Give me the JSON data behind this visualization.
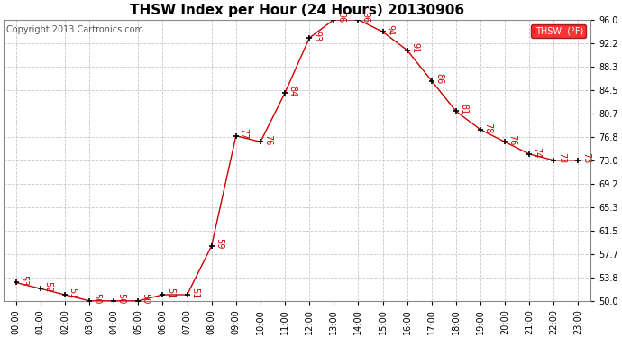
{
  "title": "THSW Index per Hour (24 Hours) 20130906",
  "copyright": "Copyright 2013 Cartronics.com",
  "legend_label": "THSW  (°F)",
  "hours": [
    0,
    1,
    2,
    3,
    4,
    5,
    6,
    7,
    8,
    9,
    10,
    11,
    12,
    13,
    14,
    15,
    16,
    17,
    18,
    19,
    20,
    21,
    22,
    23
  ],
  "values": [
    53,
    52,
    51,
    50,
    50,
    50,
    51,
    51,
    59,
    77,
    76,
    84,
    93,
    96,
    96,
    94,
    91,
    86,
    81,
    78,
    76,
    74,
    73,
    73
  ],
  "line_color": "#cc0000",
  "marker_color": "#000000",
  "bg_color": "#ffffff",
  "grid_color": "#c8c8c8",
  "ylim_min": 50.0,
  "ylim_max": 96.0,
  "yticks": [
    50.0,
    53.8,
    57.7,
    61.5,
    65.3,
    69.2,
    73.0,
    76.8,
    80.7,
    84.5,
    88.3,
    92.2,
    96.0
  ],
  "xlabel_hours": [
    "00:00",
    "01:00",
    "02:00",
    "03:00",
    "04:00",
    "05:00",
    "06:00",
    "07:00",
    "08:00",
    "09:00",
    "10:00",
    "11:00",
    "12:00",
    "13:00",
    "14:00",
    "15:00",
    "16:00",
    "17:00",
    "18:00",
    "19:00",
    "20:00",
    "21:00",
    "22:00",
    "23:00"
  ],
  "title_fontsize": 11,
  "tick_fontsize": 7,
  "label_fontsize": 7,
  "copyright_fontsize": 7
}
